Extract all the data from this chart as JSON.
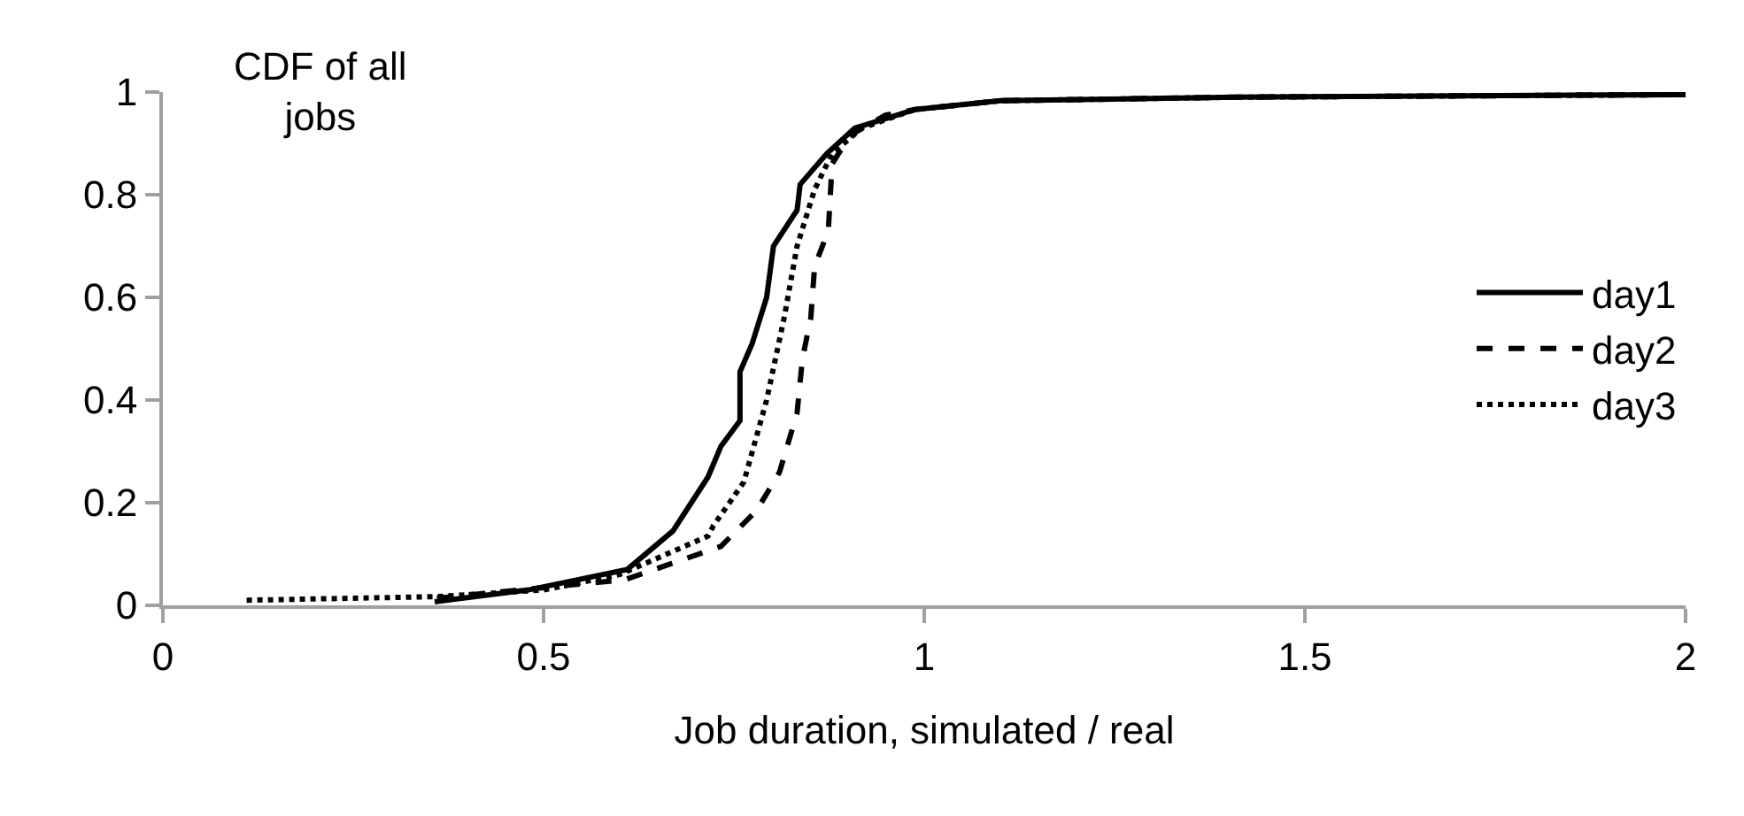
{
  "chart_data": {
    "type": "line",
    "title": "CDF of all\njobs",
    "xlabel": "Job duration, simulated / real",
    "xlim": [
      0,
      2
    ],
    "xticks": [
      0,
      0.5,
      1,
      1.5,
      2
    ],
    "ylim": [
      0,
      1
    ],
    "yticks": [
      0,
      0.2,
      0.4,
      0.6,
      0.8,
      1
    ],
    "grid": false,
    "legend": "right",
    "marker": "none",
    "series": [
      {
        "name": "day1",
        "color": "#000000",
        "line_style": "solid",
        "x": [
          0.357,
          0.48,
          0.61,
          0.67,
          0.716,
          0.733,
          0.758,
          0.758,
          0.774,
          0.793,
          0.802,
          0.833,
          0.837,
          0.872,
          0.909,
          0.988,
          1.1,
          1.41,
          2
        ],
        "values": [
          0.007,
          0.03,
          0.07,
          0.145,
          0.25,
          0.31,
          0.36,
          0.455,
          0.51,
          0.6,
          0.7,
          0.77,
          0.82,
          0.88,
          0.93,
          0.966,
          0.983,
          0.99,
          0.995
        ]
      },
      {
        "name": "day2",
        "color": "#000000",
        "line_style": "dashed",
        "x": [
          0.36,
          0.537,
          0.607,
          0.733,
          0.78,
          0.81,
          0.833,
          0.84,
          0.851,
          0.856,
          0.874,
          0.879,
          0.902,
          0.949,
          0.988,
          1.1,
          1.41,
          2
        ],
        "values": [
          0.014,
          0.04,
          0.05,
          0.115,
          0.185,
          0.26,
          0.375,
          0.48,
          0.56,
          0.66,
          0.73,
          0.86,
          0.915,
          0.955,
          0.966,
          0.983,
          0.99,
          0.995
        ]
      },
      {
        "name": "day3",
        "color": "#000000",
        "line_style": "dotted",
        "x": [
          0.11,
          0.36,
          0.5,
          0.6,
          0.716,
          0.723,
          0.763,
          0.793,
          0.816,
          0.833,
          0.856,
          0.879,
          0.918,
          0.988,
          1.1,
          1.41,
          2
        ],
        "values": [
          0.01,
          0.017,
          0.03,
          0.06,
          0.135,
          0.155,
          0.24,
          0.4,
          0.56,
          0.7,
          0.81,
          0.88,
          0.93,
          0.966,
          0.983,
          0.99,
          0.995
        ]
      }
    ]
  }
}
